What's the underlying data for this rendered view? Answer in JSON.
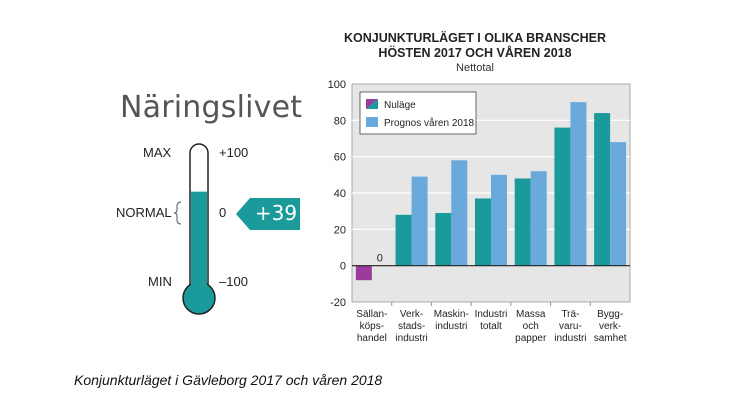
{
  "gauge": {
    "heading": "Näringslivet",
    "max_label": "MAX",
    "normal_label": "NORMAL",
    "min_label": "MIN",
    "max_value": "+100",
    "normal_value": "0",
    "min_value": "–100",
    "current_value": "+39",
    "level": 39,
    "fill_color": "#1a9a9a"
  },
  "caption": "Konjunkturläget i Gävleborg 2017 och våren 2018",
  "chart_data": {
    "type": "bar",
    "title_line1": "KONJUNKTURLÄGET I OLIKA BRANSCHER",
    "title_line2": "HÖSTEN 2017 OCH VÅREN 2018",
    "subtitle": "Nettotal",
    "categories": [
      [
        "Sällan-",
        "köps-",
        "handel"
      ],
      [
        "Verk-",
        "stads-",
        "industri"
      ],
      [
        "Maskin-",
        "industri"
      ],
      [
        "Industri",
        "totalt"
      ],
      [
        "Massa",
        "och",
        "papper"
      ],
      [
        "Trä-",
        "varu-",
        "industri"
      ],
      [
        "Bygg-",
        "verk-",
        "samhet"
      ]
    ],
    "series": [
      {
        "name": "Nuläge",
        "values": [
          -8,
          28,
          29,
          37,
          48,
          76,
          84
        ],
        "color": "#1a9a9a",
        "neg_color": "#9b3b9b"
      },
      {
        "name": "Prognos våren 2018",
        "values": [
          0,
          49,
          58,
          50,
          52,
          90,
          68
        ],
        "color": "#6aa9dc"
      }
    ],
    "zero_label": "0",
    "ylim": [
      -20,
      100
    ],
    "yticks": [
      "100",
      "80",
      "60",
      "40",
      "20",
      "0",
      "-20"
    ],
    "grid": true,
    "legend": "top-left",
    "plot_bg": "#e6e6e6"
  }
}
